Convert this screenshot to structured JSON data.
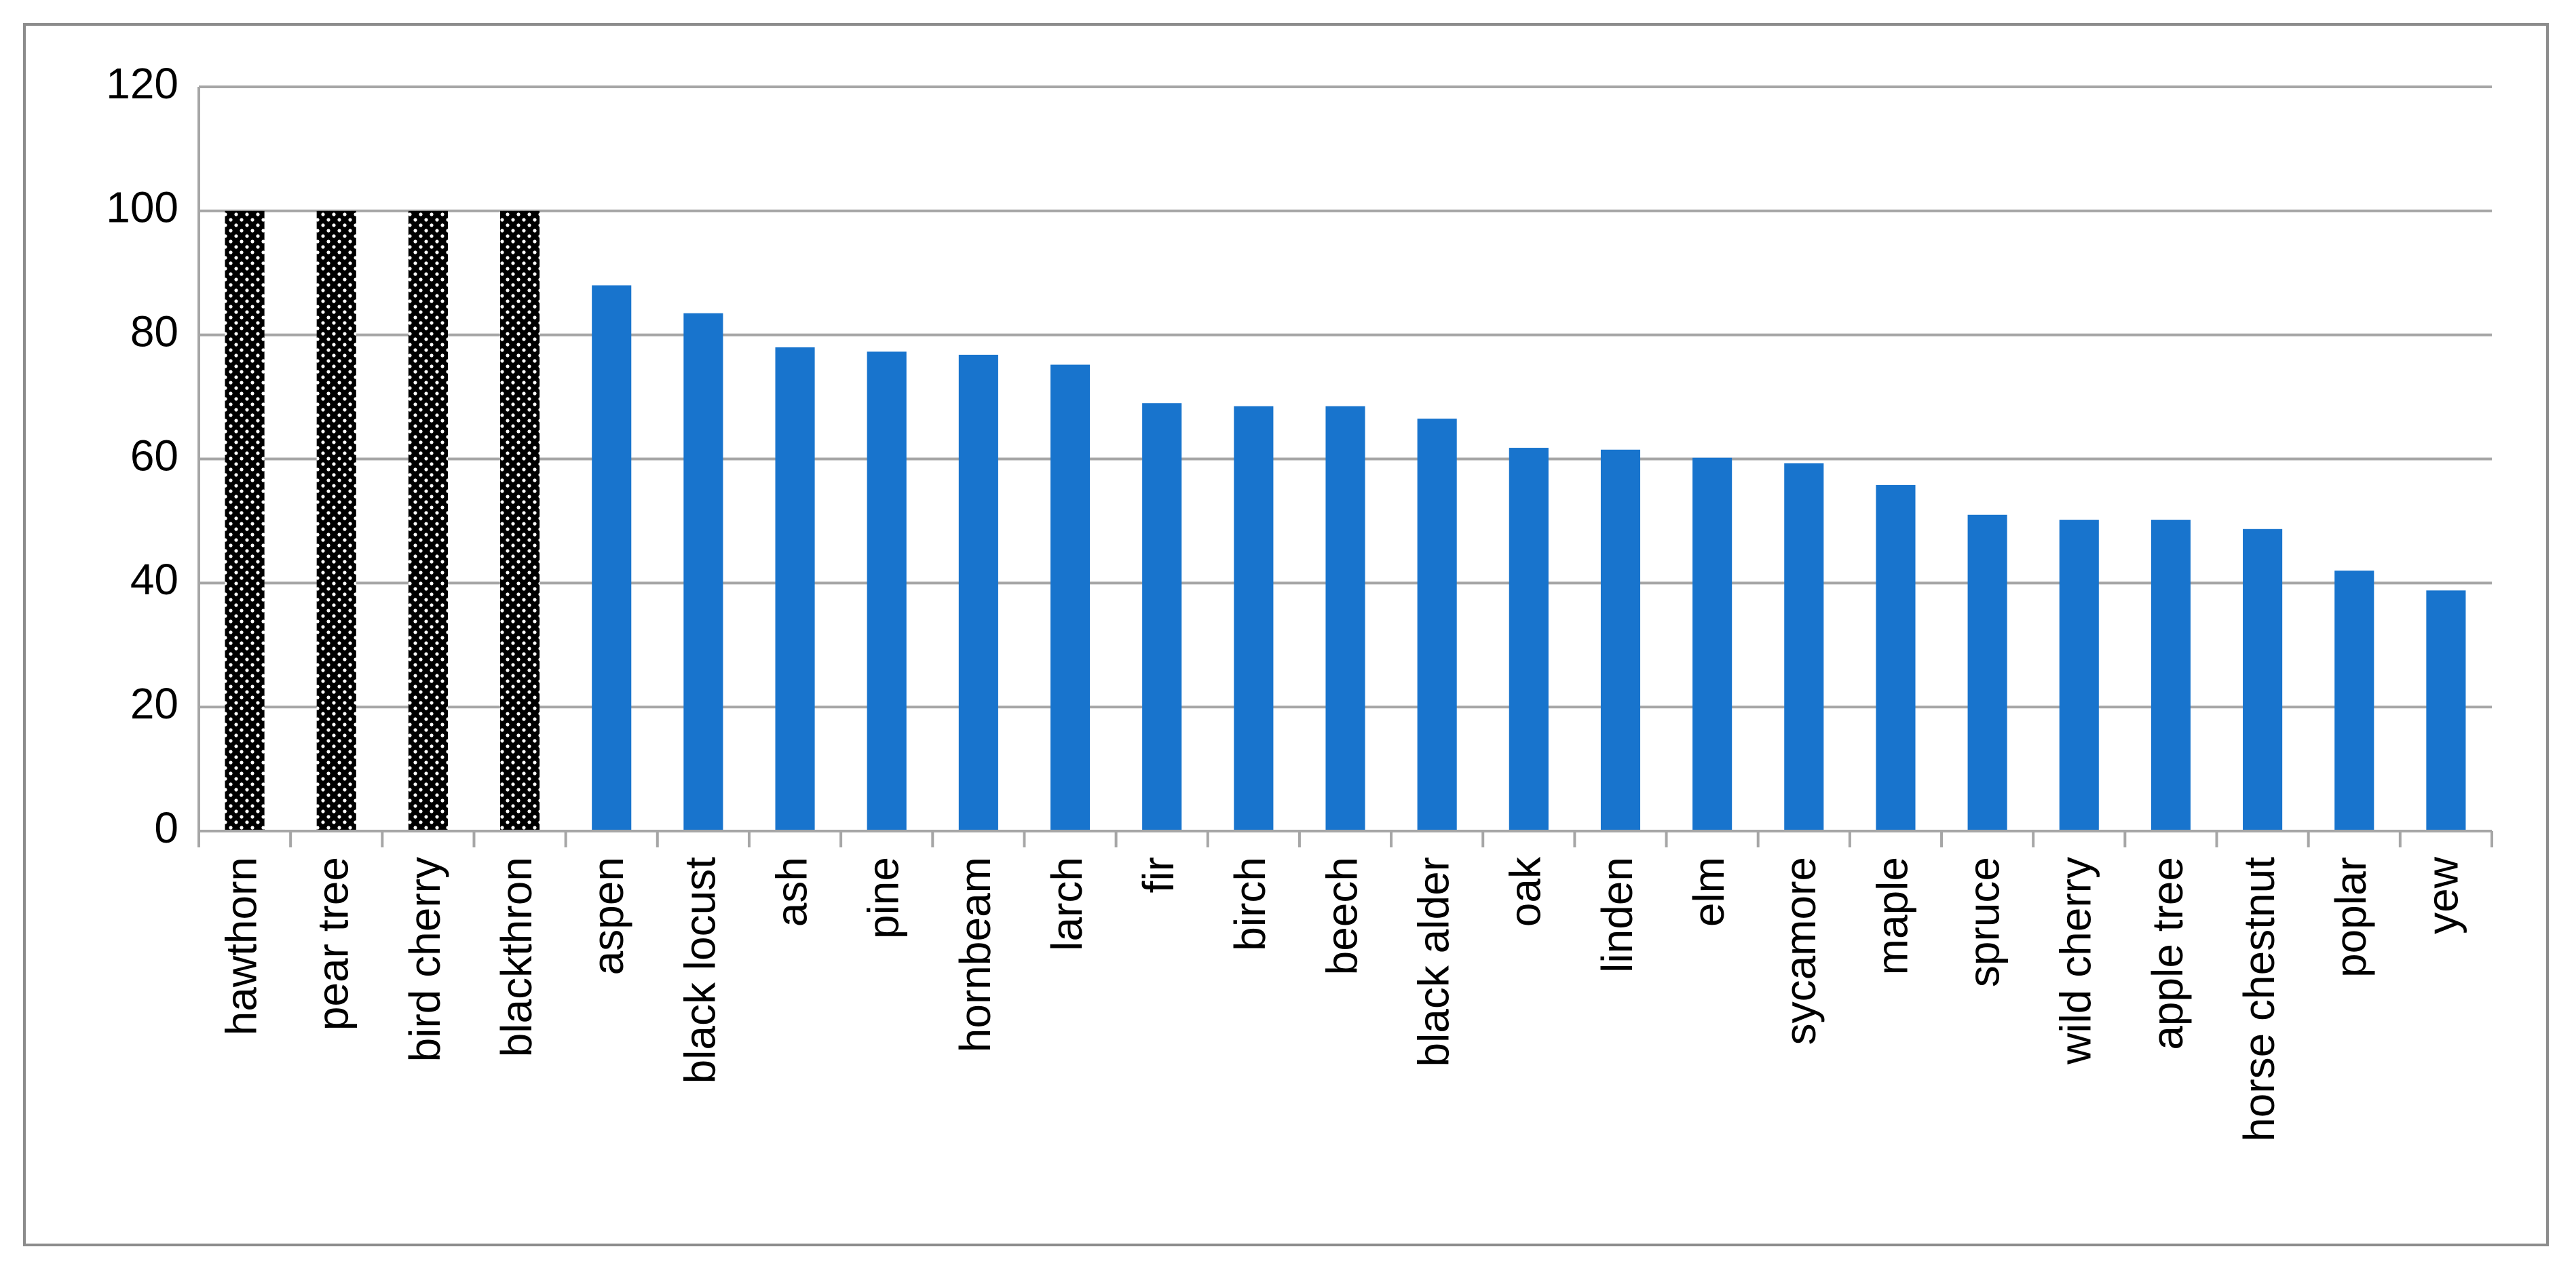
{
  "chart_data": {
    "type": "bar",
    "categories": [
      "hawthorn",
      "pear tree",
      "bird cherry",
      "blackthron",
      "aspen",
      "black locust",
      "ash",
      "pine",
      "hornbeam",
      "larch",
      "fir",
      "birch",
      "beech",
      "black alder",
      "oak",
      "linden",
      "elm",
      "sycamore",
      "maple",
      "spruce",
      "wild cherry",
      "apple tree",
      "horse chestnut",
      "poplar",
      "yew"
    ],
    "values": [
      100,
      100,
      100,
      100,
      88,
      83.5,
      78,
      77.3,
      76.8,
      75.2,
      69,
      68.5,
      68.5,
      66.5,
      61.8,
      61.5,
      60.2,
      59.3,
      55.8,
      51,
      50.2,
      50.2,
      48.7,
      42,
      38.8
    ],
    "colors": [
      "#000000",
      "#000000",
      "#000000",
      "#000000",
      "#1874cd",
      "#1874cd",
      "#1874cd",
      "#1874cd",
      "#1874cd",
      "#1874cd",
      "#1874cd",
      "#1874cd",
      "#1874cd",
      "#1874cd",
      "#1874cd",
      "#1874cd",
      "#1874cd",
      "#1874cd",
      "#1874cd",
      "#1874cd",
      "#1874cd",
      "#1874cd",
      "#1874cd",
      "#1874cd",
      "#1874cd"
    ],
    "patterns": [
      "dots",
      "dots",
      "dots",
      "dots",
      null,
      null,
      null,
      null,
      null,
      null,
      null,
      null,
      null,
      null,
      null,
      null,
      null,
      null,
      null,
      null,
      null,
      null,
      null,
      null,
      null
    ],
    "ylim": [
      0,
      120
    ],
    "yticks": [
      0,
      20,
      40,
      60,
      80,
      100,
      120
    ],
    "grid": true
  }
}
